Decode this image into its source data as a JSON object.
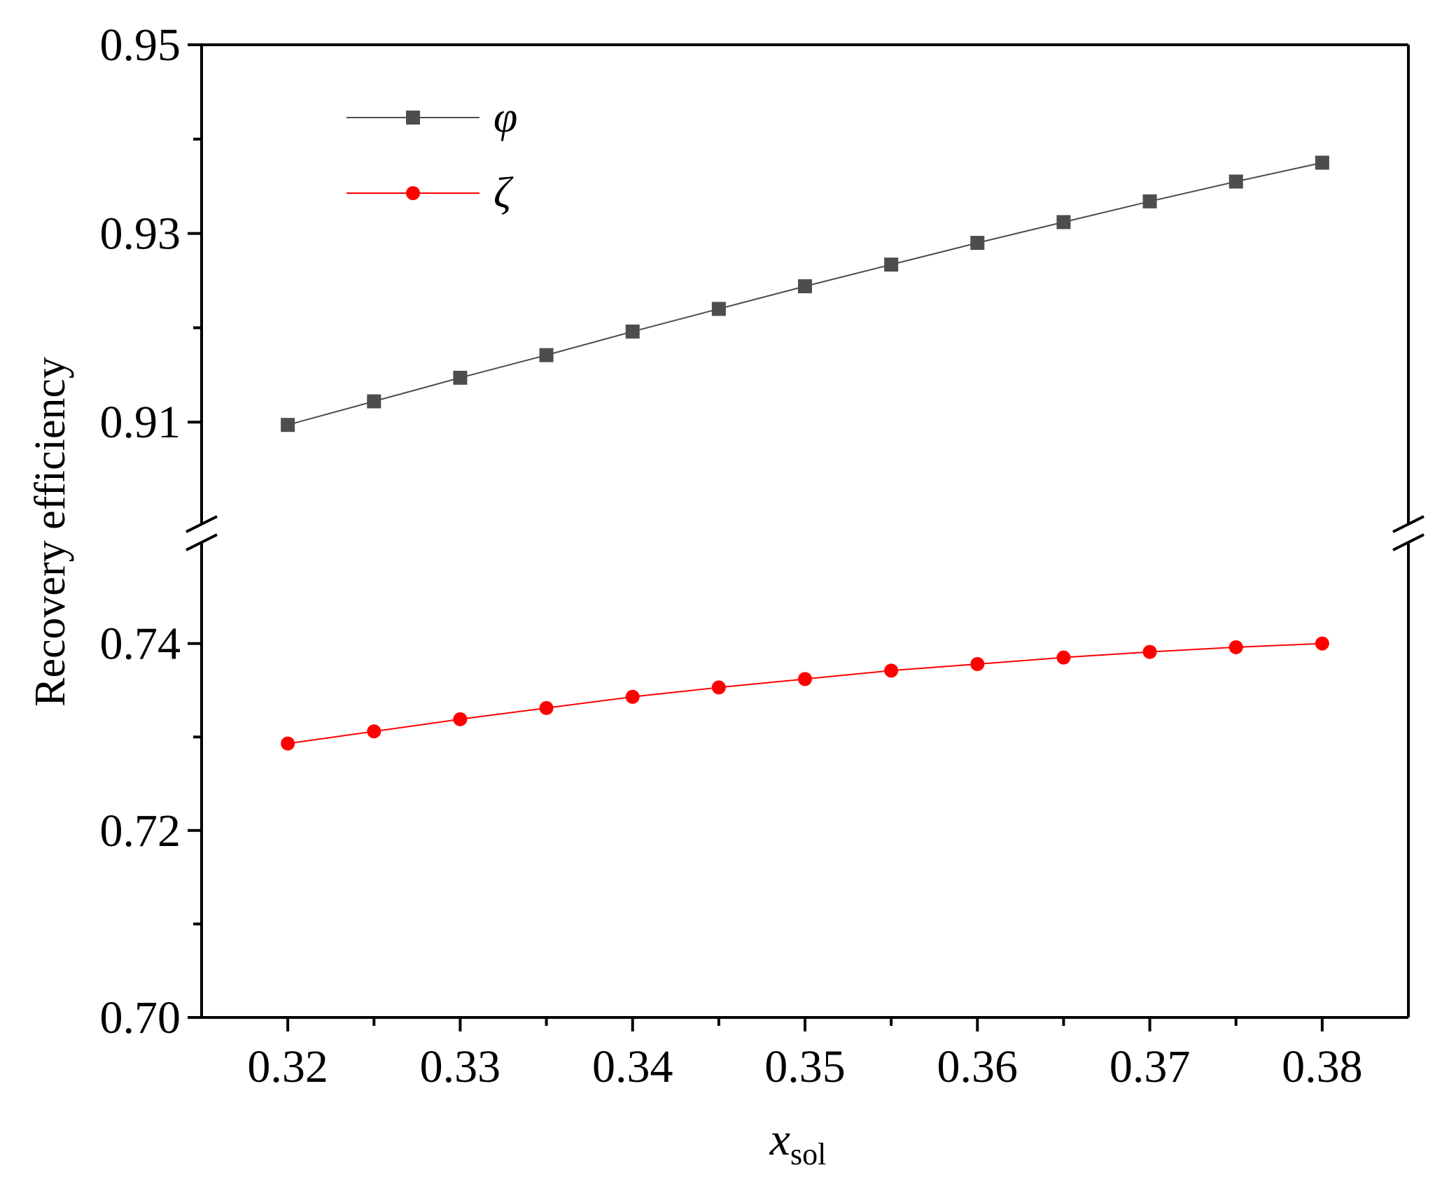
{
  "chart_data": {
    "type": "line",
    "xlabel": {
      "main": "x",
      "subscript": "sol"
    },
    "ylabel": "Recovery efficiency",
    "x": [
      0.32,
      0.325,
      0.33,
      0.335,
      0.34,
      0.345,
      0.35,
      0.355,
      0.36,
      0.365,
      0.37,
      0.375,
      0.38
    ],
    "xlim": [
      0.315,
      0.385
    ],
    "x_ticks": [
      "0.32",
      "0.33",
      "0.34",
      "0.35",
      "0.36",
      "0.37",
      "0.38"
    ],
    "y_axis_break": true,
    "y_segments": [
      {
        "range": [
          0.7,
          0.75
        ],
        "ticks": [
          "0.70",
          "0.72",
          "0.74"
        ]
      },
      {
        "range": [
          0.9,
          0.95
        ],
        "ticks": [
          "0.91",
          "0.93",
          "0.95"
        ]
      }
    ],
    "series": [
      {
        "name": "φ",
        "color": "#4d4d4d",
        "marker": "square",
        "values": [
          0.9097,
          0.9122,
          0.9147,
          0.9171,
          0.9196,
          0.922,
          0.9244,
          0.9267,
          0.929,
          0.9312,
          0.9334,
          0.9355,
          0.9375
        ]
      },
      {
        "name": "ζ",
        "color": "#ff0000",
        "marker": "circle",
        "values": [
          0.7293,
          0.7306,
          0.7319,
          0.7331,
          0.7343,
          0.7353,
          0.7362,
          0.7371,
          0.7378,
          0.7385,
          0.7391,
          0.7396,
          0.74
        ]
      }
    ],
    "legend_position": "top-left",
    "grid": false
  }
}
